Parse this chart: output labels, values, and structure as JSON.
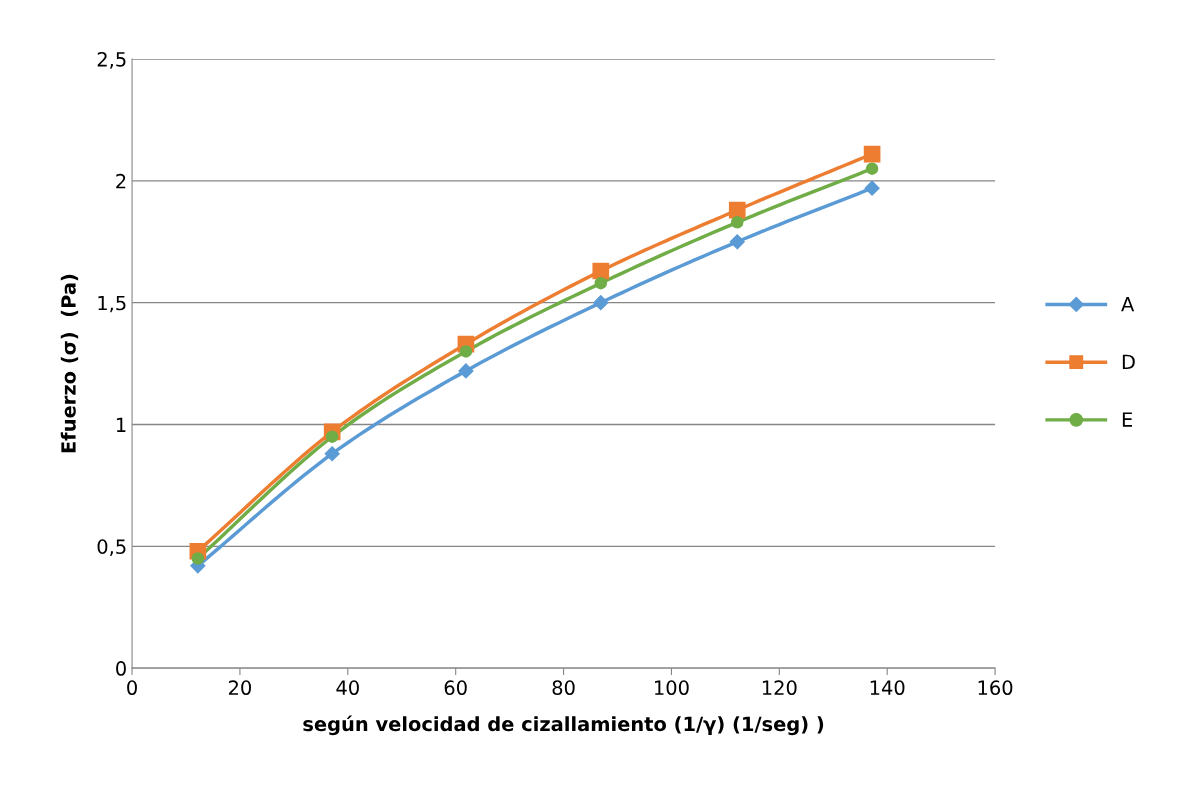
{
  "chart_data": {
    "type": "line",
    "xlabel": "según velocidad de cizallamiento (1/γ) (1/seg) )",
    "ylabel": "Efuerzo (σ)  (Pa)",
    "x": [
      12.2,
      37.1,
      61.9,
      86.9,
      112.2,
      137.2
    ],
    "series": [
      {
        "name": "A",
        "color": "#5b9bd5",
        "marker": "diamond",
        "values": [
          0.42,
          0.88,
          1.22,
          1.5,
          1.75,
          1.97
        ]
      },
      {
        "name": "D",
        "color": "#ed7d31",
        "marker": "square",
        "values": [
          0.48,
          0.97,
          1.33,
          1.63,
          1.88,
          2.11
        ]
      },
      {
        "name": "E",
        "color": "#70ad47",
        "marker": "circle",
        "values": [
          0.45,
          0.95,
          1.3,
          1.58,
          1.83,
          2.05
        ]
      }
    ],
    "xlim": [
      0,
      160
    ],
    "xticks": [
      0,
      20,
      40,
      60,
      80,
      100,
      120,
      140,
      160
    ],
    "ylim": [
      0,
      2.5
    ],
    "yticks": [
      0,
      {
        "value": 0.5,
        "label": "0,5"
      },
      1,
      {
        "value": 1.5,
        "label": "1,5"
      },
      2,
      {
        "value": 2.5,
        "label": "2,5"
      }
    ],
    "grid": "y",
    "legend": "right",
    "line_style": "solid"
  }
}
